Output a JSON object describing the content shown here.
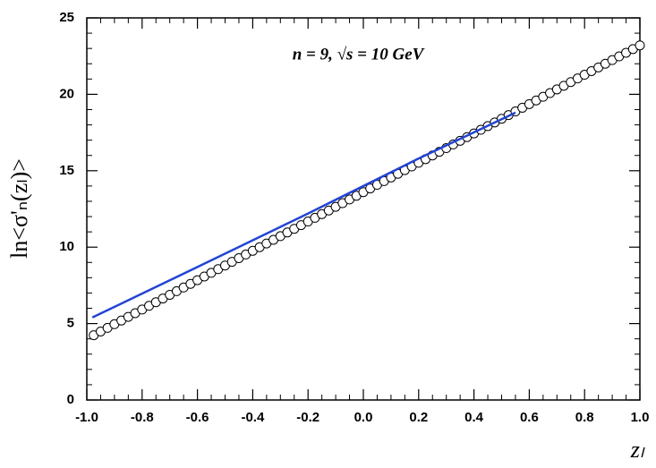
{
  "chart_data": {
    "type": "scatter",
    "annotation": "n = 9,  √s = 10 GeV",
    "y_label": "ln<σ'ₙ(zₗ)>",
    "x_label": "zₗ",
    "xlim": [
      -1.0,
      1.0
    ],
    "ylim": [
      0,
      25
    ],
    "xticks": [
      {
        "value": -1.0,
        "label": "-1.0"
      },
      {
        "value": -0.8,
        "label": "-0.8"
      },
      {
        "value": -0.6,
        "label": "-0.6"
      },
      {
        "value": -0.4,
        "label": "-0.4"
      },
      {
        "value": -0.2,
        "label": "-0.2"
      },
      {
        "value": 0.0,
        "label": "0.0"
      },
      {
        "value": 0.2,
        "label": "0.2"
      },
      {
        "value": 0.4,
        "label": "0.4"
      },
      {
        "value": 0.6,
        "label": "0.6"
      },
      {
        "value": 0.8,
        "label": "0.8"
      },
      {
        "value": 1.0,
        "label": "1.0"
      }
    ],
    "yticks": [
      0,
      5,
      10,
      15,
      20,
      25
    ],
    "grid": false,
    "series": [
      {
        "type": "scatter",
        "color": "#000000",
        "x": [
          -0.975,
          -0.95,
          -0.925,
          -0.9,
          -0.875,
          -0.85,
          -0.825,
          -0.8,
          -0.775,
          -0.75,
          -0.725,
          -0.7,
          -0.675,
          -0.65,
          -0.625,
          -0.6,
          -0.575,
          -0.55,
          -0.525,
          -0.5,
          -0.475,
          -0.45,
          -0.425,
          -0.4,
          -0.375,
          -0.35,
          -0.325,
          -0.3,
          -0.275,
          -0.25,
          -0.225,
          -0.2,
          -0.175,
          -0.15,
          -0.125,
          -0.1,
          -0.075,
          -0.05,
          -0.025,
          0.0,
          0.025,
          0.05,
          0.075,
          0.1,
          0.125,
          0.15,
          0.175,
          0.2,
          0.225,
          0.25,
          0.275,
          0.3,
          0.325,
          0.35,
          0.375,
          0.4,
          0.425,
          0.45,
          0.475,
          0.5,
          0.525,
          0.55,
          0.575,
          0.6,
          0.625,
          0.65,
          0.675,
          0.7,
          0.725,
          0.75,
          0.775,
          0.8,
          0.825,
          0.85,
          0.875,
          0.9,
          0.925,
          0.95,
          0.975,
          1.0
        ],
        "values": [
          4.24,
          4.48,
          4.72,
          4.96,
          5.2,
          5.44,
          5.68,
          5.92,
          6.16,
          6.4,
          6.64,
          6.88,
          7.12,
          7.36,
          7.6,
          7.84,
          8.08,
          8.32,
          8.56,
          8.8,
          9.04,
          9.28,
          9.52,
          9.76,
          10,
          10.24,
          10.48,
          10.72,
          10.96,
          11.2,
          11.44,
          11.68,
          11.92,
          12.16,
          12.4,
          12.64,
          12.88,
          13.12,
          13.36,
          13.6,
          13.84,
          14.08,
          14.32,
          14.56,
          14.8,
          15.04,
          15.28,
          15.52,
          15.76,
          16,
          16.24,
          16.48,
          16.72,
          16.96,
          17.2,
          17.44,
          17.68,
          17.92,
          18.16,
          18.4,
          18.64,
          18.88,
          19.12,
          19.36,
          19.6,
          19.84,
          20.08,
          20.32,
          20.56,
          20.8,
          21.04,
          21.28,
          21.52,
          21.76,
          22,
          22.24,
          22.48,
          22.72,
          22.96,
          23.2
        ]
      },
      {
        "type": "line",
        "color": "#2244d4",
        "x": [
          -0.98,
          -0.6,
          -0.2,
          0.2,
          0.55
        ],
        "values": [
          5.4,
          8.7,
          12.2,
          15.8,
          18.8
        ]
      }
    ]
  }
}
